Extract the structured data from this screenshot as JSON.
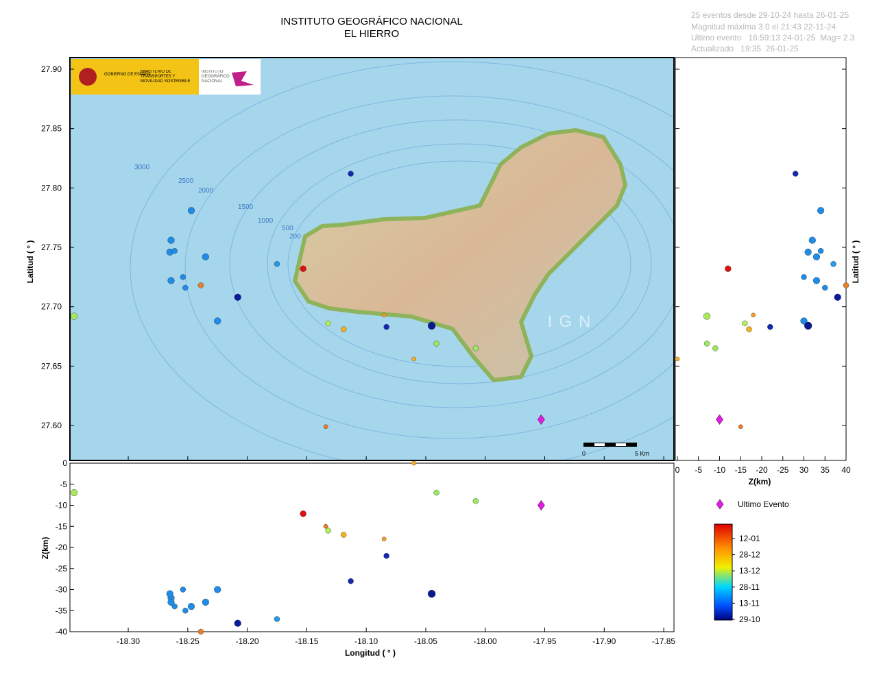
{
  "header": {
    "title": [
      "INSTITUTO GEOGRÁFICO NACIONAL",
      "EL HIERRO"
    ],
    "info": [
      "25 eventos desde 29-10-24 hasta 26-01-25",
      "Magnitud máxima 3.0 el 21:43 22-11-24",
      "Ultimo evento   16:59:13 24-01-25  Mag= 2.3",
      "Actualizado   19:35  26-01-25"
    ]
  },
  "logo": [
    "GOBIERNO DE ESPAÑA",
    "MINISTERIO DE TRANSPORTES Y MOVILIDAD SOSTENIBLE",
    "INSTITUTO GEOGRÁFICO NACIONAL"
  ],
  "map": {
    "type": "scatter",
    "xlim": [
      -18.349,
      -17.8414
    ],
    "ylim": [
      27.5706,
      27.9098
    ],
    "yticks": [
      {
        "value": 27.6,
        "label": "27.60"
      },
      27.65,
      {
        "value": 27.7,
        "label": "27.70"
      },
      27.75,
      {
        "value": 27.8,
        "label": "27.80"
      },
      27.85,
      {
        "value": 27.9,
        "label": "27.90"
      }
    ],
    "ylabel": "Latitud ( ° )",
    "contour_labels": [
      "3000",
      "2500",
      "2000",
      "1500",
      "1000",
      "500",
      "200"
    ],
    "watermark": "IGN",
    "scale_labels": [
      "0",
      "5 Km"
    ]
  },
  "depth_panel": {
    "type": "scatter",
    "xticks": [
      {
        "value": -18.3,
        "label": "-18.30"
      },
      -18.25,
      {
        "value": -18.2,
        "label": "-18.20"
      },
      -18.15,
      {
        "value": -18.1,
        "label": "-18.10"
      },
      -18.05,
      {
        "value": -18.0,
        "label": "-18.00"
      },
      -17.95,
      {
        "value": -17.9,
        "label": "-17.90"
      },
      -17.85
    ],
    "xlabel": "Longitud ( ° )",
    "ylim": [
      -40,
      0
    ],
    "yticks": [
      0,
      -5,
      -10,
      -15,
      -20,
      -25,
      -30,
      -35,
      -40
    ],
    "ylabel": "Z(km)"
  },
  "lat_panel": {
    "type": "scatter",
    "xlim": [
      0,
      -40
    ],
    "xticks": [
      0,
      -5,
      -10,
      -15,
      -20,
      -25,
      {
        "value": -30,
        "label": "30"
      },
      {
        "value": -35,
        "label": "35"
      },
      {
        "value": -40,
        "label": "40"
      }
    ],
    "xlabel": "Z(km)",
    "ylabel": "Latitud ( ° )"
  },
  "events": {
    "lon": [
      -18.3455,
      -18.247,
      -18.264,
      -18.265,
      -18.261,
      -18.235,
      -18.264,
      -18.254,
      -18.252,
      -18.239,
      -18.208,
      -18.225,
      -18.113,
      -18.175,
      -18.153,
      -18.132,
      -18.119,
      -18.085,
      -18.083,
      -18.045,
      -18.041,
      -18.008,
      -18.06,
      -18.134
    ],
    "lat": [
      27.692,
      27.781,
      27.756,
      27.746,
      27.747,
      27.742,
      27.722,
      27.725,
      27.716,
      27.718,
      27.708,
      27.688,
      27.812,
      27.736,
      27.732,
      27.686,
      27.681,
      27.693,
      27.683,
      27.684,
      27.669,
      27.665,
      27.656,
      27.599
    ],
    "depth": [
      -7,
      -34,
      -32,
      -31,
      -34,
      -33,
      -33,
      -30,
      -35,
      -40,
      -38,
      -30,
      -28,
      -37,
      -12,
      -16,
      -17,
      -18,
      -22,
      -31,
      -7,
      -9,
      0,
      -15
    ],
    "magnitude": [
      2.6,
      2.6,
      2.6,
      2.6,
      2.0,
      2.6,
      2.6,
      2.0,
      2.0,
      2.0,
      2.6,
      2.6,
      2.0,
      2.0,
      2.3,
      2.0,
      2.0,
      1.4,
      2.0,
      3.0,
      2.0,
      2.0,
      1.4,
      1.4
    ],
    "color": [
      "#a8e85c",
      "#1e8ce8",
      "#1e8ce8",
      "#1e8ce8",
      "#1e8ce8",
      "#1e8ce8",
      "#1e8ce8",
      "#1e8ce8",
      "#1e8ce8",
      "#e8822a",
      "#0c1aa0",
      "#1e8ce8",
      "#1428b0",
      "#2898e8",
      "#e01010",
      "#b0ec60",
      "#f0b020",
      "#f0a020",
      "#1428b0",
      "#0c1a90",
      "#98e860",
      "#9ce860",
      "#f4b024",
      "#f07820"
    ]
  },
  "last_event": {
    "lon": -17.953,
    "lat": 27.605,
    "depth": -10,
    "color": "#e020e0",
    "label": "Ultimo Evento"
  },
  "colorbar": {
    "labels": [
      "12-01",
      "28-12",
      "13-12",
      "28-11",
      "13-11",
      "29-10"
    ]
  }
}
